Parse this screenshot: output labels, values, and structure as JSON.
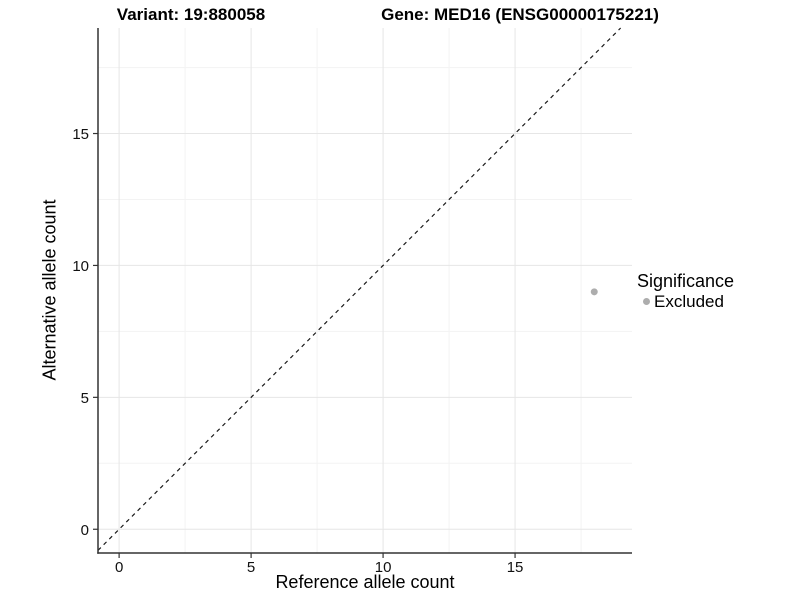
{
  "titles": {
    "variant": "Variant: 19:880058",
    "gene": "Gene: MED16 (ENSG00000175221)"
  },
  "chart_data": {
    "type": "scatter",
    "xlabel": "Reference allele count",
    "ylabel": "Alternative allele count",
    "x_ticks": [
      0,
      5,
      10,
      15
    ],
    "y_ticks": [
      0,
      5,
      10,
      15
    ],
    "x_minor_ticks": [
      2.5,
      7.5,
      12.5,
      17.5
    ],
    "y_minor_ticks": [
      2.5,
      7.5,
      12.5,
      17.5
    ],
    "xlim": [
      -0.8,
      19.43
    ],
    "ylim": [
      -0.9,
      19.0
    ],
    "grid": true,
    "points": [
      {
        "x": 18,
        "y": 9,
        "series": "Excluded"
      }
    ],
    "reference_line": {
      "type": "identity",
      "style": "dashed",
      "slope": 1,
      "intercept": 0
    },
    "legend": {
      "title": "Significance",
      "position": "right",
      "entries": [
        {
          "label": "Excluded",
          "color": "#adadad"
        }
      ]
    }
  },
  "colors": {
    "background": "#ffffff",
    "grid_major": "#e6e6e6",
    "grid_minor": "#f3f3f3",
    "axis_line": "#333333",
    "tick_mark": "#333333",
    "diagonal_line": "#1a1a1a",
    "point": "#adadad",
    "text": "#000000"
  }
}
